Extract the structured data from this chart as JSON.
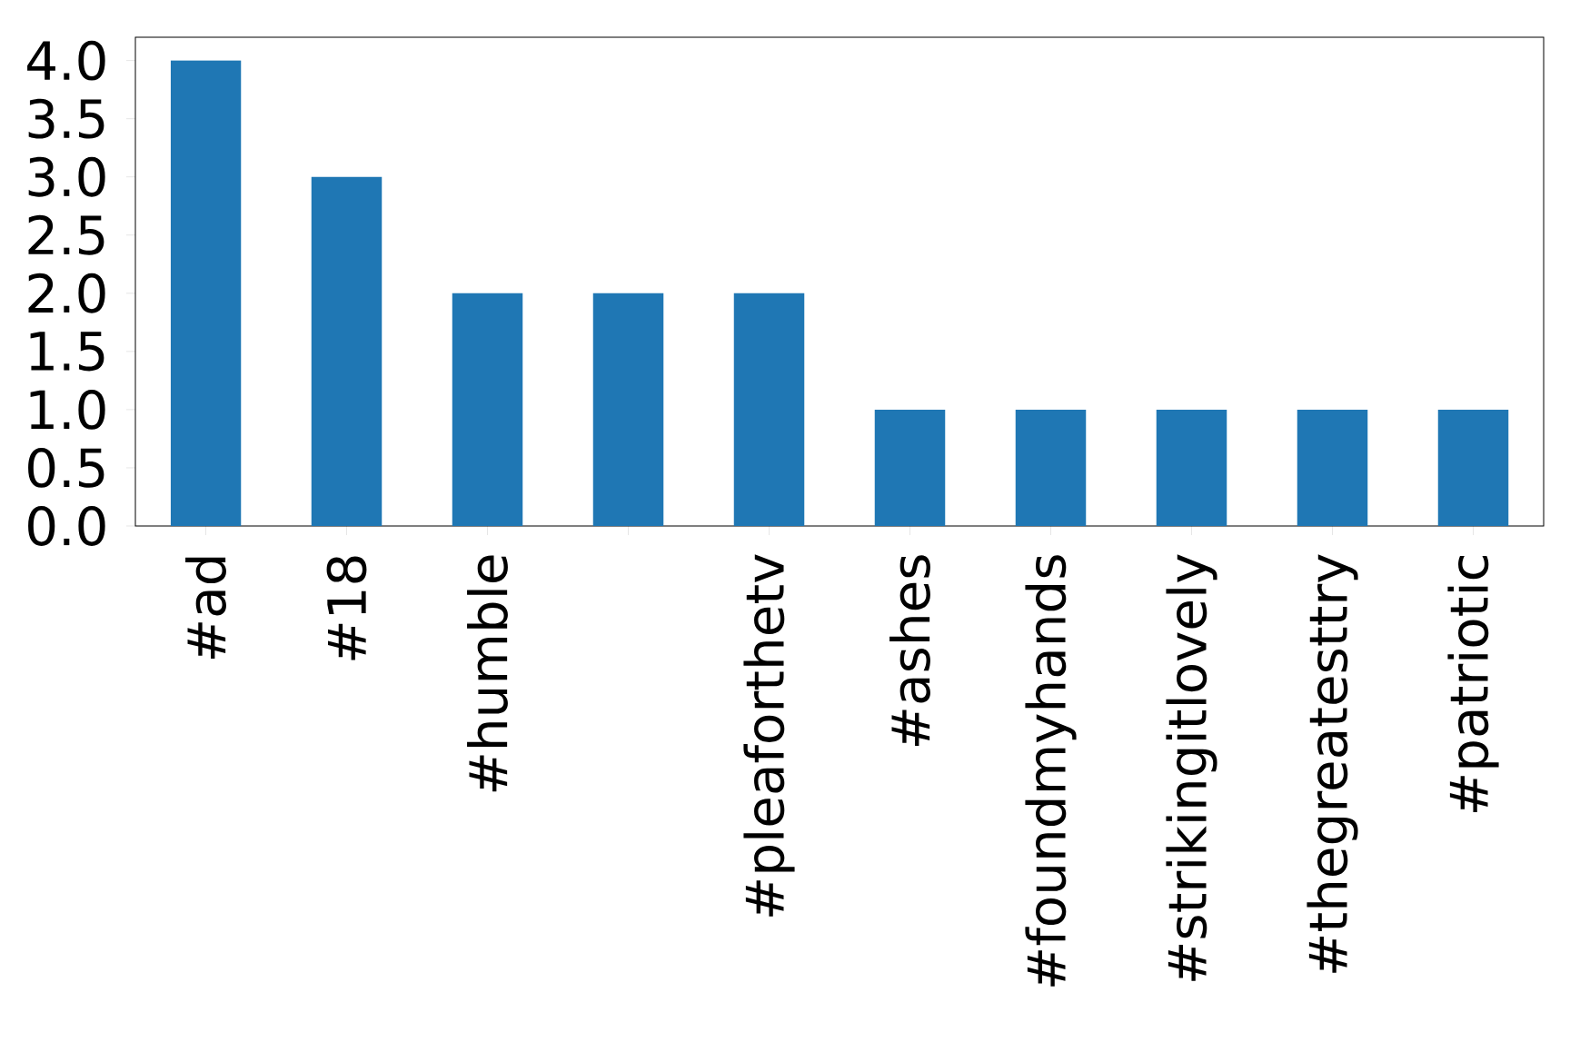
{
  "chart_data": {
    "type": "bar",
    "categories": [
      "#ad",
      "#18",
      "#humble",
      null,
      "#pleaforthetv",
      "#ashes",
      "#foundmyhands",
      "#strikingitlovely",
      "#thegreatesttry",
      "#patriotic"
    ],
    "values": [
      4,
      3,
      2,
      2,
      2,
      1,
      1,
      1,
      1,
      1
    ],
    "color": "#1f77b4",
    "ylim": [
      0,
      4.2
    ],
    "yticks": [
      {
        "value": 0,
        "label": "0.0"
      },
      0.5,
      {
        "value": 1,
        "label": "1.0"
      },
      1.5,
      {
        "value": 2,
        "label": "2.0"
      },
      2.5,
      {
        "value": 3,
        "label": "3.0"
      },
      3.5,
      {
        "value": 4,
        "label": "4.0"
      }
    ]
  }
}
